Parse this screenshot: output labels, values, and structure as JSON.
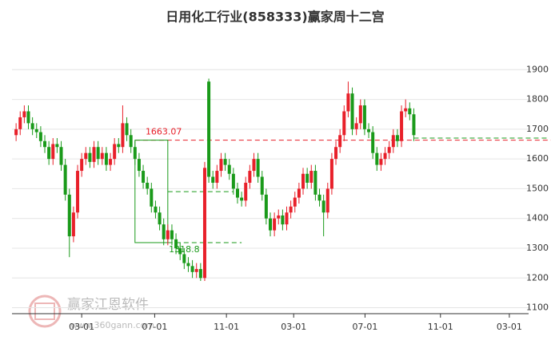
{
  "chart_data": {
    "type": "candlestick",
    "title": "日用化工行业(858333)赢家周十二宫",
    "up_color": "#e8202a",
    "down_color": "#1a9a1a",
    "open": [
      1680,
      1700,
      1740,
      1760,
      1720,
      1700,
      1690,
      1660,
      1640,
      1600,
      1650,
      1640,
      1580,
      1480,
      1340,
      1420,
      1560,
      1600,
      1620,
      1590,
      1640,
      1600,
      1620,
      1580,
      1600,
      1650,
      1640,
      1720,
      1680,
      1640,
      1600,
      1560,
      1520,
      1500,
      1440,
      1420,
      1380,
      1330,
      1360,
      1330,
      1300,
      1280,
      1250,
      1240,
      1220,
      1230,
      1200,
      1860,
      1540,
      1520,
      1560,
      1600,
      1580,
      1550,
      1500,
      1470,
      1460,
      1520,
      1560,
      1600,
      1540,
      1480,
      1400,
      1360,
      1400,
      1410,
      1380,
      1420,
      1440,
      1470,
      1500,
      1550,
      1520,
      1560,
      1480,
      1460,
      1420,
      1500,
      1600,
      1640,
      1680,
      1760,
      1820,
      1700,
      1720,
      1780,
      1700,
      1690,
      1620,
      1580,
      1600,
      1620,
      1640,
      1680,
      1660,
      1760,
      1770,
      1750
    ],
    "high": [
      1720,
      1760,
      1780,
      1780,
      1740,
      1720,
      1710,
      1680,
      1660,
      1670,
      1670,
      1660,
      1600,
      1500,
      1440,
      1580,
      1620,
      1640,
      1640,
      1660,
      1660,
      1640,
      1640,
      1620,
      1670,
      1670,
      1780,
      1740,
      1700,
      1660,
      1620,
      1580,
      1540,
      1520,
      1460,
      1440,
      1400,
      1380,
      1380,
      1350,
      1320,
      1300,
      1270,
      1260,
      1250,
      1250,
      1590,
      1870,
      1560,
      1580,
      1620,
      1620,
      1600,
      1570,
      1520,
      1490,
      1540,
      1580,
      1620,
      1620,
      1560,
      1500,
      1420,
      1420,
      1430,
      1430,
      1440,
      1460,
      1490,
      1520,
      1570,
      1570,
      1580,
      1580,
      1500,
      1480,
      1520,
      1620,
      1660,
      1700,
      1780,
      1860,
      1840,
      1740,
      1800,
      1800,
      1720,
      1710,
      1640,
      1620,
      1640,
      1660,
      1700,
      1700,
      1780,
      1800,
      1790,
      1770
    ],
    "low": [
      1660,
      1680,
      1720,
      1700,
      1680,
      1670,
      1640,
      1620,
      1580,
      1580,
      1620,
      1560,
      1460,
      1270,
      1320,
      1400,
      1540,
      1580,
      1570,
      1570,
      1580,
      1580,
      1560,
      1560,
      1580,
      1620,
      1620,
      1660,
      1620,
      1580,
      1540,
      1500,
      1480,
      1420,
      1400,
      1360,
      1310,
      1310,
      1310,
      1280,
      1260,
      1230,
      1220,
      1200,
      1200,
      1190,
      1190,
      1520,
      1500,
      1500,
      1540,
      1560,
      1530,
      1480,
      1450,
      1440,
      1440,
      1500,
      1540,
      1520,
      1460,
      1380,
      1340,
      1340,
      1380,
      1360,
      1360,
      1400,
      1420,
      1450,
      1480,
      1500,
      1500,
      1460,
      1440,
      1340,
      1400,
      1480,
      1580,
      1620,
      1660,
      1740,
      1680,
      1680,
      1700,
      1680,
      1670,
      1600,
      1560,
      1560,
      1580,
      1600,
      1620,
      1640,
      1640,
      1740,
      1730,
      1660
    ],
    "close": [
      1700,
      1740,
      1760,
      1720,
      1700,
      1690,
      1660,
      1640,
      1600,
      1650,
      1640,
      1580,
      1480,
      1340,
      1420,
      1560,
      1600,
      1620,
      1590,
      1640,
      1600,
      1620,
      1580,
      1600,
      1650,
      1640,
      1720,
      1680,
      1640,
      1600,
      1560,
      1520,
      1500,
      1440,
      1420,
      1380,
      1330,
      1360,
      1330,
      1300,
      1280,
      1250,
      1240,
      1220,
      1230,
      1200,
      1570,
      1540,
      1520,
      1560,
      1600,
      1580,
      1550,
      1500,
      1470,
      1460,
      1520,
      1560,
      1600,
      1540,
      1480,
      1400,
      1360,
      1400,
      1410,
      1380,
      1420,
      1440,
      1470,
      1500,
      1550,
      1520,
      1560,
      1480,
      1460,
      1420,
      1500,
      1600,
      1640,
      1680,
      1760,
      1820,
      1700,
      1720,
      1780,
      1700,
      1690,
      1620,
      1580,
      1600,
      1620,
      1640,
      1680,
      1660,
      1760,
      1770,
      1750,
      1680
    ],
    "xlim": [
      -1,
      125
    ],
    "xticks": [
      {
        "value": 16,
        "label": "03-01"
      },
      {
        "value": 33.8,
        "label": "07-01"
      },
      {
        "value": 51.3,
        "label": "11-01"
      },
      {
        "value": 67.7,
        "label": "03-01"
      },
      {
        "value": 85.1,
        "label": "07-01"
      },
      {
        "value": 103.5,
        "label": "11-01"
      },
      {
        "value": 120.3,
        "label": "03-01"
      }
    ],
    "ylim": [
      1080,
      2000
    ],
    "yticks": [
      1100,
      1200,
      1300,
      1400,
      1500,
      1600,
      1700,
      1800,
      1900
    ],
    "grid": true,
    "red_level": 1663.07,
    "box": {
      "top": 1663.07,
      "bottom": 1318.8
    },
    "green_levels": [
      1490,
      1318.8,
      1670
    ],
    "watermark": [
      "赢家江恩软件",
      "www.360gann.com"
    ]
  }
}
